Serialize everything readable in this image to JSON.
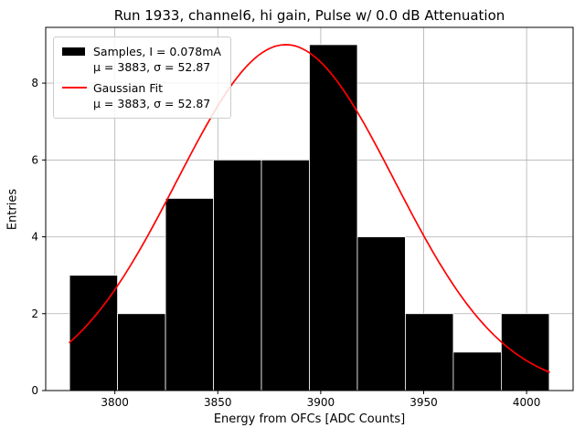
{
  "chart_data": {
    "type": "histogram",
    "title": "Run 1933, channel6, hi gain, Pulse w/ 0.0 dB Attenuation",
    "xlabel": "Energy from OFCs [ADC Counts]",
    "ylabel": "Entries",
    "xlim": [
      3766.4,
      4022.6
    ],
    "ylim": [
      0,
      9.45
    ],
    "x_ticks": [
      3800,
      3850,
      3900,
      3950,
      4000
    ],
    "y_ticks": [
      0,
      2,
      4,
      6,
      8
    ],
    "grid": true,
    "grid_color": "#b0b0b0",
    "bar_color": "#000000",
    "bar_edge_color": "#ffffff",
    "bin_edges": [
      3778.0,
      3801.3,
      3824.6,
      3847.9,
      3871.2,
      3894.5,
      3917.8,
      3941.1,
      3964.4,
      3987.7,
      4011.0
    ],
    "counts": [
      3,
      2,
      5,
      6,
      6,
      9,
      4,
      2,
      1,
      2
    ],
    "gaussian_fit": {
      "mu": 3883,
      "sigma": 52.87,
      "amplitude": 9.0,
      "color": "#ff0000"
    },
    "legend": {
      "entries": [
        {
          "swatch": "samples-patch",
          "label": "Samples, I = 0.078mA",
          "sublabel": "μ = 3883, σ = 52.87"
        },
        {
          "swatch": "gaussian-line",
          "label": "Gaussian Fit",
          "sublabel": "μ = 3883, σ = 52.87"
        }
      ]
    }
  }
}
